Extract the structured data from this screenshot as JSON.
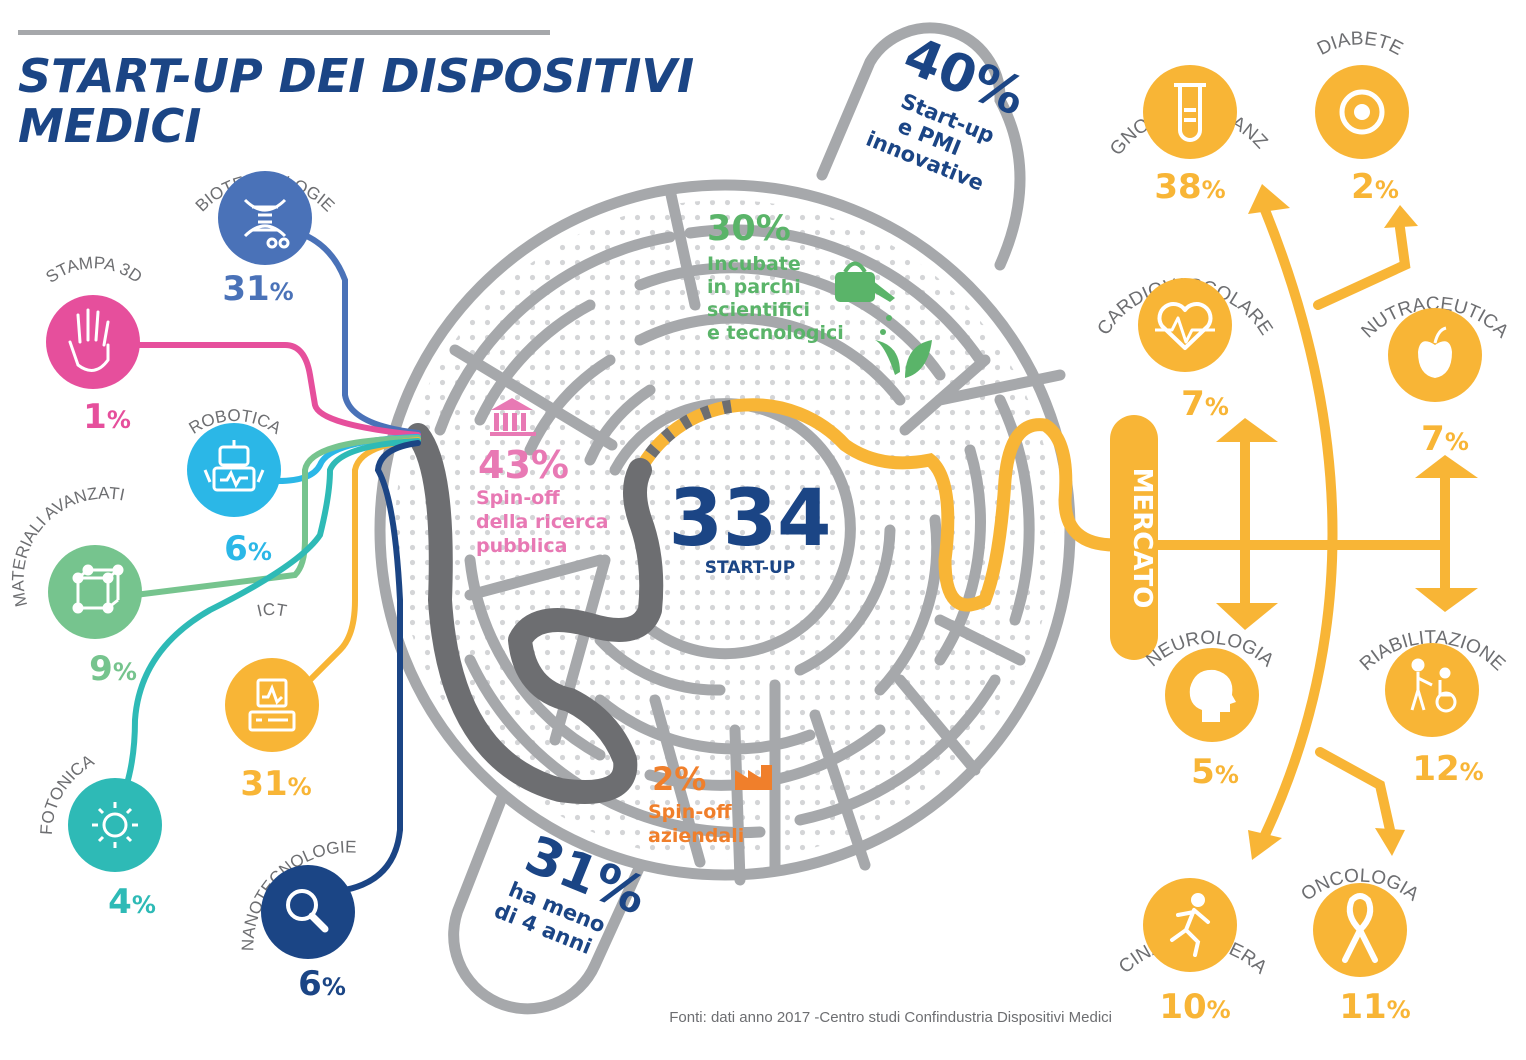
{
  "title": {
    "line1": "START-UP DEI DISPOSITIVI",
    "line2": "MEDICI"
  },
  "center": {
    "value": "334",
    "label": "START-UP"
  },
  "colors": {
    "gray": "#a6a8ab",
    "dark_gray": "#6d6e71",
    "navy": "#1b4585",
    "blue": "#4a72b8",
    "pink": "#e64f9c",
    "cyan": "#2bb7e7",
    "green": "#76c48e",
    "teal": "#2ebab6",
    "gold": "#f8b536",
    "orange": "#f07f2b",
    "inc_green": "#5ab469"
  },
  "maze_stats": {
    "innovative": {
      "value": "40%",
      "l1": "Start-up",
      "l2": "e PMI",
      "l3": "innovative"
    },
    "incubate": {
      "value": "30%",
      "l1": "Incubate",
      "l2": "in parchi",
      "l3": "scientifici",
      "l4": "e tecnologici"
    },
    "spinoff_public": {
      "value": "43%",
      "l1": "Spin-off",
      "l2": "della ricerca",
      "l3": "pubblica"
    },
    "spinoff_company": {
      "value": "2%",
      "l1": "Spin-off",
      "l2": "aziendali"
    },
    "young": {
      "value": "31%",
      "l1": "ha meno",
      "l2": "di 4 anni"
    }
  },
  "technologies": [
    {
      "name": "BIOTECNOLOGIE",
      "pct": "31",
      "icon": "dna-icon"
    },
    {
      "name": "STAMPA 3D",
      "pct": "1",
      "icon": "hand-icon"
    },
    {
      "name": "ROBOTICA",
      "pct": "6",
      "icon": "robot-icon"
    },
    {
      "name": "MATERIALI AVANZATI",
      "pct": "9",
      "icon": "molecule-icon"
    },
    {
      "name": "ICT",
      "pct": "31",
      "icon": "monitor-icon"
    },
    {
      "name": "FOTONICA",
      "pct": "4",
      "icon": "sun-icon"
    },
    {
      "name": "NANOTECNOLOGIE",
      "pct": "6",
      "icon": "magnifier-icon"
    }
  ],
  "market_label": "MERCATO",
  "markets": [
    {
      "name": "DIAGNOSTICA AVANZATA",
      "pct": "38",
      "icon": "test-tube-icon"
    },
    {
      "name": "DIABETE",
      "pct": "2",
      "icon": "target-icon"
    },
    {
      "name": "CARDIOVASCOLARE",
      "pct": "7",
      "icon": "heartbeat-icon"
    },
    {
      "name": "NUTRACEUTICA",
      "pct": "7",
      "icon": "apple-icon"
    },
    {
      "name": "NEUROLOGIA",
      "pct": "5",
      "icon": "head-icon"
    },
    {
      "name": "RIABILITAZIONE",
      "pct": "12",
      "icon": "wheelchair-icon"
    },
    {
      "name": "MEDICINA RIGENERATIVA",
      "pct": "10",
      "icon": "runner-icon"
    },
    {
      "name": "ONCOLOGIA",
      "pct": "11",
      "icon": "ribbon-icon"
    }
  ],
  "pct_symbol": "%",
  "source": "Fonti: dati anno 2017 -Centro studi Confindustria Dispositivi Medici"
}
